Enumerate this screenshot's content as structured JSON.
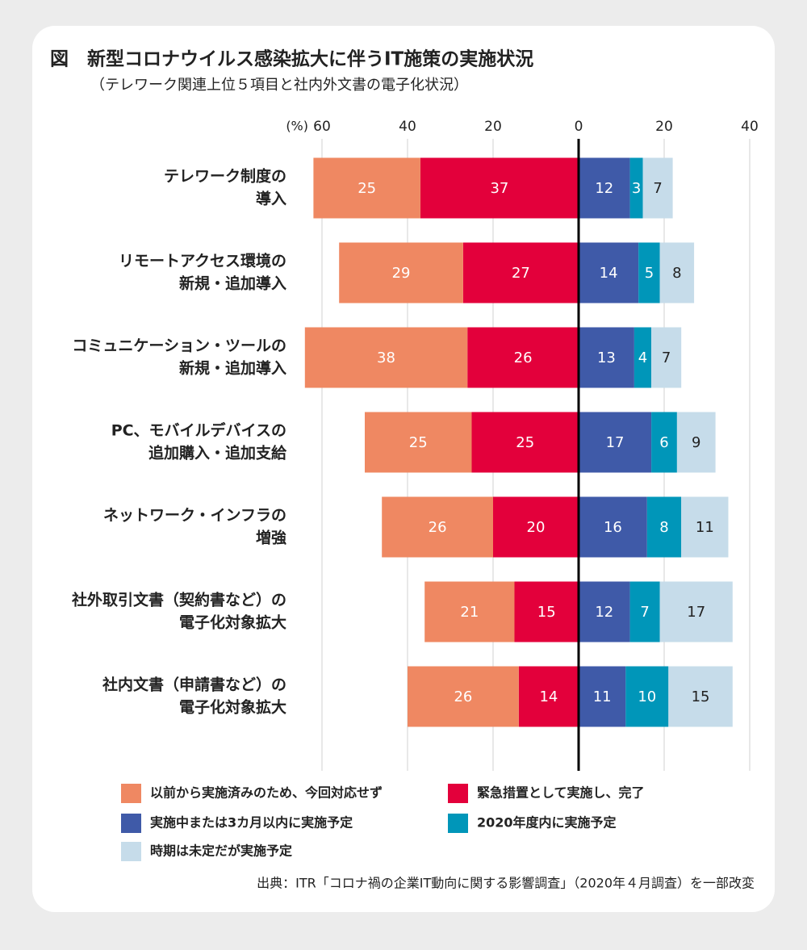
{
  "chart_data": {
    "type": "diverging-bar",
    "title": "図　新型コロナウイルス感染拡大に伴うIT施策の実施状況",
    "subtitle": "（テレワーク関連上位５項目と社内外文書の電子化状況）",
    "unit_label": "(%)",
    "categories": [
      [
        "テレワーク制度の",
        "導入"
      ],
      [
        "リモートアクセス環境の",
        "新規・追加導入"
      ],
      [
        "コミュニケーション・ツールの",
        "新規・追加導入"
      ],
      [
        "PC、モバイルデバイスの",
        "追加購入・追加支給"
      ],
      [
        "ネットワーク・インフラの",
        "増強"
      ],
      [
        "社外取引文書（契約書など）の",
        "電子化対象拡大"
      ],
      [
        "社内文書（申請書など）の",
        "電子化対象拡大"
      ]
    ],
    "series": [
      {
        "name": "以前から実施済みのため、今回対応せず",
        "color": "#ef8862",
        "side": "left",
        "values": [
          25,
          29,
          38,
          25,
          26,
          21,
          26
        ]
      },
      {
        "name": "緊急措置として実施し、完了",
        "color": "#e3003b",
        "side": "left",
        "values": [
          37,
          27,
          26,
          25,
          20,
          15,
          14
        ]
      },
      {
        "name": "実施中または3カ月以内に実施予定",
        "color": "#3f5aa8",
        "side": "right",
        "values": [
          12,
          14,
          13,
          17,
          16,
          12,
          11
        ]
      },
      {
        "name": "2020年度内に実施予定",
        "color": "#0096b9",
        "side": "right",
        "values": [
          3,
          5,
          4,
          6,
          8,
          7,
          10
        ]
      },
      {
        "name": "時期は未定だが実施予定",
        "color": "#c6dcea",
        "side": "right",
        "values": [
          7,
          8,
          7,
          9,
          11,
          17,
          15
        ]
      }
    ],
    "xlim": [
      -60,
      40
    ],
    "xticks": [
      {
        "value": -60,
        "label": "60"
      },
      {
        "value": -40,
        "label": "40"
      },
      {
        "value": -20,
        "label": "20"
      },
      0,
      20,
      40
    ],
    "grid": true,
    "source": "出典：ITR「コロナ禍の企業IT動向に関する影響調査」（2020年４月調査）を一部改変"
  }
}
